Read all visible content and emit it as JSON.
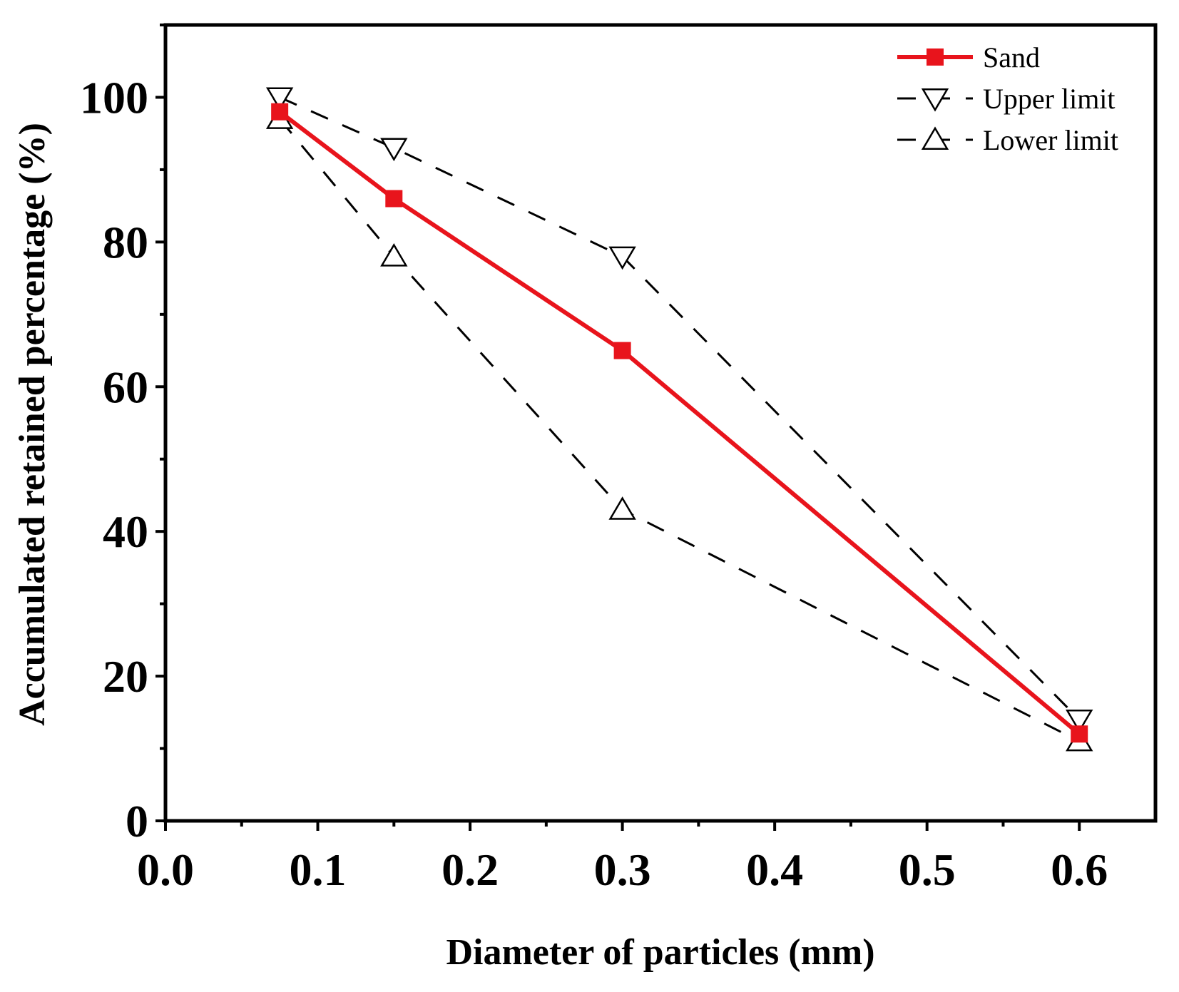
{
  "chart_data": {
    "type": "line",
    "title": "",
    "xlabel": "Diameter of particles (mm)",
    "ylabel": "Accumulated retained percentage (%)",
    "xlim": [
      0.0,
      0.65
    ],
    "ylim": [
      0,
      110
    ],
    "x_ticks": [
      "0.0",
      "0.1",
      "0.2",
      "0.3",
      "0.4",
      "0.5",
      "0.6"
    ],
    "x_tick_values": [
      0.0,
      0.1,
      0.2,
      0.3,
      0.4,
      0.5,
      0.6
    ],
    "y_ticks": [
      "0",
      "20",
      "40",
      "60",
      "80",
      "100"
    ],
    "y_tick_values": [
      0,
      20,
      40,
      60,
      80,
      100
    ],
    "legend_position": "top-right",
    "series": [
      {
        "name": "Sand",
        "color": "#e8141c",
        "style": "solid",
        "marker": "square",
        "x": [
          0.075,
          0.15,
          0.3,
          0.6
        ],
        "values": [
          98,
          86,
          65,
          12
        ]
      },
      {
        "name": "Upper limit",
        "color": "#000000",
        "style": "dashed",
        "marker": "triangle-down",
        "x": [
          0.075,
          0.15,
          0.3,
          0.6
        ],
        "values": [
          100,
          93,
          78,
          14
        ]
      },
      {
        "name": "Lower limit",
        "color": "#000000",
        "style": "dashed",
        "marker": "triangle-up",
        "x": [
          0.075,
          0.15,
          0.3,
          0.6
        ],
        "values": [
          97,
          78,
          43,
          11
        ]
      }
    ]
  }
}
